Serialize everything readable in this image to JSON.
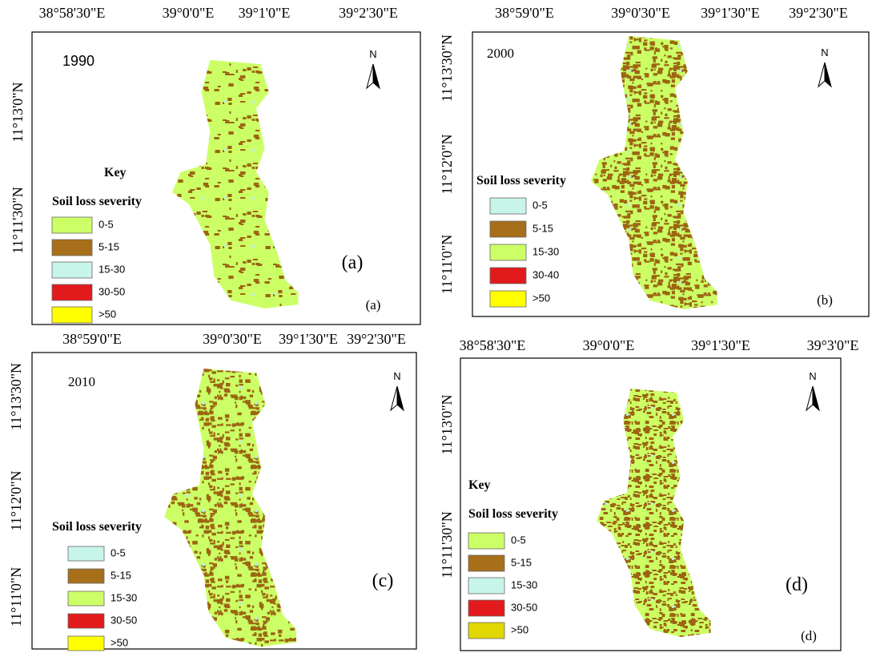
{
  "panels": [
    {
      "year": "1990",
      "key": "Key",
      "legend_title": "Soil loss severity",
      "legend": [
        {
          "label": "0-5",
          "color": "#ccff66"
        },
        {
          "label": "5-15",
          "color": "#a86f1a"
        },
        {
          "label": "15-30",
          "color": "#c8f5ea"
        },
        {
          "label": "30-50",
          "color": "#e31a1c"
        },
        {
          "label": ">50",
          "color": "#ffff00"
        }
      ],
      "panel_label": "(a)",
      "panel_label_small": "(a)",
      "x_labels": [
        "38°58'30\"E",
        "39°0'0\"E",
        "39°1'0\"E",
        "39°2'30\"E"
      ],
      "y_labels": [
        "11°13'0\"N",
        "11°11'30\"N"
      ],
      "north": "N"
    },
    {
      "year": "2000",
      "legend_title": "Soil loss severity",
      "legend": [
        {
          "label": "0-5",
          "color": "#c8f5ea"
        },
        {
          "label": "5-15",
          "color": "#a86f1a"
        },
        {
          "label": "15-30",
          "color": "#ccff66"
        },
        {
          "label": "30-40",
          "color": "#e31a1c"
        },
        {
          "label": ">50",
          "color": "#ffff00"
        }
      ],
      "panel_label_small": "(b)",
      "x_labels": [
        "38°59'0\"E",
        "39°0'30\"E",
        "39°1'30\"E",
        "39°2'30\"E"
      ],
      "y_labels": [
        "11°13'30\"N",
        "11°12'0\"N",
        "11°11'0\"N"
      ],
      "north": "N"
    },
    {
      "year": "2010",
      "legend_title": "Soil loss severity",
      "legend": [
        {
          "label": "0-5",
          "color": "#c8f5ea"
        },
        {
          "label": "5-15",
          "color": "#a86f1a"
        },
        {
          "label": "15-30",
          "color": "#ccff66"
        },
        {
          "label": "30-50",
          "color": "#e31a1c"
        },
        {
          "label": ">50",
          "color": "#ffff00"
        }
      ],
      "panel_label": "(c)",
      "x_labels": [
        "38°59'0\"E",
        "39°0'30\"E",
        "39°1'30\"E",
        "39°2'30\"E"
      ],
      "y_labels": [
        "11°13'30\"N",
        "11°12'0\"N",
        "11°11'0\"N"
      ],
      "north": "N"
    },
    {
      "key": "Key",
      "legend_title": "Soil loss severity",
      "legend": [
        {
          "label": "0-5",
          "color": "#ccff66"
        },
        {
          "label": "5-15",
          "color": "#a86f1a"
        },
        {
          "label": "15-30",
          "color": "#c8f5ea"
        },
        {
          "label": "30-50",
          "color": "#e31a1c"
        },
        {
          "label": ">50",
          "color": "#e0d800"
        }
      ],
      "panel_label": "(d)",
      "panel_label_small": "(d)",
      "x_labels": [
        "38°58'30\"E",
        "39°0'0\"E",
        "39°1'30\"E",
        "39°3'0\"E"
      ],
      "y_labels": [
        "11°13'0\"N",
        "11°11'30\"N"
      ],
      "north": "N"
    }
  ]
}
